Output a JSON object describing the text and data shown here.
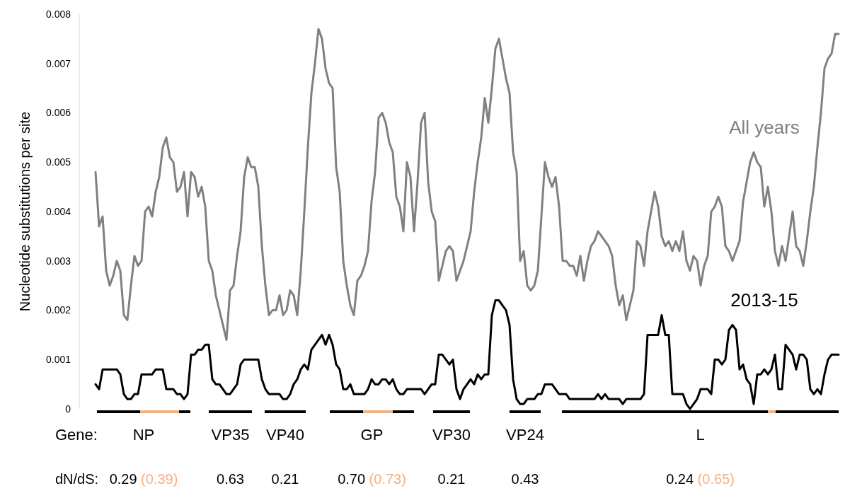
{
  "chart_data": {
    "type": "line",
    "ylabel": "Nucleotide substitutions per site",
    "ylim": [
      0,
      0.008
    ],
    "yticks": [
      0,
      0.001,
      0.002,
      0.003,
      0.004,
      0.005,
      0.006,
      0.007,
      0.008
    ],
    "grid": false,
    "categories": [
      null,
      null,
      null,
      null,
      null,
      null,
      null,
      null,
      null,
      null,
      null,
      null,
      null,
      null,
      null,
      null,
      null,
      null,
      null,
      null,
      null,
      null,
      null,
      null,
      null,
      null,
      null,
      null,
      null,
      null,
      null,
      null,
      null,
      null,
      null,
      null,
      null,
      null,
      null,
      null,
      null,
      null,
      null,
      null,
      null,
      null,
      null,
      null,
      null,
      null,
      null,
      null,
      null,
      null,
      null,
      null,
      null,
      null,
      null,
      null,
      null,
      null,
      null,
      null,
      null,
      null,
      null,
      null,
      null,
      null,
      null,
      null,
      null,
      null,
      null,
      null,
      null,
      null,
      null,
      null,
      null,
      null,
      null,
      null,
      null,
      null,
      null,
      null,
      null,
      null,
      null,
      null,
      null,
      null,
      null,
      null,
      null,
      null,
      null,
      null,
      null,
      null,
      null,
      null,
      null,
      null,
      null,
      null,
      null,
      null,
      null,
      null,
      null,
      null,
      null,
      null,
      null,
      null,
      null,
      null,
      null,
      null,
      null,
      null,
      null,
      null,
      null,
      null,
      null,
      null,
      null,
      null,
      null,
      null,
      null,
      null,
      null,
      null,
      null,
      null,
      null,
      null,
      null,
      null,
      null,
      null,
      null,
      null,
      null,
      null,
      null,
      null,
      null,
      null,
      null,
      null,
      null,
      null,
      null,
      null,
      null,
      null,
      null,
      null,
      null,
      null,
      null,
      null,
      null,
      null,
      null,
      null,
      null,
      null,
      null,
      null,
      null,
      null,
      null,
      null,
      null,
      null,
      null,
      null,
      null,
      null,
      null,
      null,
      null,
      null,
      null,
      null,
      null,
      null,
      null,
      null,
      null,
      null,
      null,
      null,
      null,
      null,
      null,
      null,
      null,
      null,
      null,
      null,
      null,
      null,
      null
    ],
    "series": [
      {
        "name": "All years",
        "color": "#808080",
        "values": [
          0.0048,
          0.0037,
          0.0039,
          0.0028,
          0.0025,
          0.0027,
          0.003,
          0.0028,
          0.0019,
          0.0018,
          0.0025,
          0.0031,
          0.0029,
          0.003,
          0.004,
          0.0041,
          0.0039,
          0.0044,
          0.0047,
          0.0053,
          0.0055,
          0.0051,
          0.005,
          0.0044,
          0.0045,
          0.0048,
          0.0039,
          0.0048,
          0.0047,
          0.0043,
          0.0045,
          0.0041,
          0.003,
          0.0028,
          0.0023,
          0.002,
          0.0017,
          0.0014,
          0.0024,
          0.0025,
          0.0031,
          0.0036,
          0.0047,
          0.0051,
          0.0049,
          0.0049,
          0.0045,
          0.0033,
          0.0025,
          0.0019,
          0.002,
          0.002,
          0.0023,
          0.0019,
          0.002,
          0.0024,
          0.0023,
          0.0019,
          0.0028,
          0.004,
          0.0053,
          0.0064,
          0.007,
          0.0077,
          0.0075,
          0.0069,
          0.0066,
          0.0065,
          0.0049,
          0.0044,
          0.003,
          0.0025,
          0.0021,
          0.0019,
          0.0026,
          0.0027,
          0.0029,
          0.0032,
          0.0042,
          0.0048,
          0.0059,
          0.006,
          0.0058,
          0.0054,
          0.0052,
          0.0043,
          0.0041,
          0.0036,
          0.005,
          0.0047,
          0.0036,
          0.0046,
          0.0058,
          0.006,
          0.0046,
          0.004,
          0.0038,
          0.0026,
          0.0029,
          0.0032,
          0.0033,
          0.0032,
          0.0026,
          0.0028,
          0.003,
          0.0033,
          0.0036,
          0.0044,
          0.005,
          0.0055,
          0.0063,
          0.0058,
          0.0065,
          0.0073,
          0.0075,
          0.0071,
          0.0067,
          0.0064,
          0.0052,
          0.0048,
          0.003,
          0.0032,
          0.0025,
          0.0024,
          0.0025,
          0.0028,
          0.0039,
          0.005,
          0.0047,
          0.0045,
          0.0047,
          0.0041,
          0.003,
          0.003,
          0.0029,
          0.0029,
          0.0027,
          0.0031,
          0.0026,
          0.003,
          0.0033,
          0.0034,
          0.0036,
          0.0035,
          0.0034,
          0.0033,
          0.0031,
          0.0025,
          0.0021,
          0.0023,
          0.0018,
          0.0021,
          0.0024,
          0.0034,
          0.0033,
          0.0029,
          0.0036,
          0.004,
          0.0044,
          0.0041,
          0.0035,
          0.0033,
          0.0034,
          0.0032,
          0.0034,
          0.0032,
          0.0036,
          0.003,
          0.0028,
          0.0031,
          0.003,
          0.0025,
          0.0029,
          0.0031,
          0.004,
          0.0041,
          0.0043,
          0.0041,
          0.0033,
          0.0032,
          0.003,
          0.0032,
          0.0034,
          0.0042,
          0.0046,
          0.005,
          0.0052,
          0.005,
          0.0049,
          0.0041,
          0.0045,
          0.004,
          0.0032,
          0.0029,
          0.0033,
          0.003,
          0.0035,
          0.004,
          0.0033,
          0.0032,
          0.0029,
          0.0034,
          0.004,
          0.0045,
          0.0053,
          0.006,
          0.0069,
          0.0071,
          0.0072,
          0.0076,
          0.0076
        ]
      },
      {
        "name": "2013-15",
        "color": "#000000",
        "values": [
          0.0005,
          0.0004,
          0.0008,
          0.0008,
          0.0008,
          0.0008,
          0.0008,
          0.0007,
          0.0003,
          0.0002,
          0.0002,
          0.0003,
          0.0003,
          0.0007,
          0.0007,
          0.0007,
          0.0007,
          0.0008,
          0.0008,
          0.0008,
          0.0004,
          0.0004,
          0.0004,
          0.0003,
          0.0003,
          0.0002,
          0.0003,
          0.0011,
          0.0011,
          0.0012,
          0.0012,
          0.0013,
          0.0013,
          0.0006,
          0.0005,
          0.0005,
          0.0004,
          0.0003,
          0.0003,
          0.0004,
          0.0005,
          0.0009,
          0.001,
          0.001,
          0.001,
          0.001,
          0.001,
          0.0006,
          0.0004,
          0.0003,
          0.0003,
          0.0003,
          0.0003,
          0.0002,
          0.0002,
          0.0003,
          0.0005,
          0.0006,
          0.0008,
          0.0009,
          0.0008,
          0.0012,
          0.0013,
          0.0014,
          0.0015,
          0.0013,
          0.0015,
          0.0013,
          0.0009,
          0.0008,
          0.0004,
          0.0004,
          0.0005,
          0.0003,
          0.0003,
          0.0003,
          0.0003,
          0.0004,
          0.0006,
          0.0005,
          0.0005,
          0.0006,
          0.0006,
          0.0005,
          0.0006,
          0.0004,
          0.0003,
          0.0003,
          0.0004,
          0.0004,
          0.0004,
          0.0004,
          0.0004,
          0.0003,
          0.0004,
          0.0005,
          0.0005,
          0.0011,
          0.0011,
          0.001,
          0.0009,
          0.001,
          0.0004,
          0.0002,
          0.0004,
          0.0005,
          0.0006,
          0.0005,
          0.0007,
          0.0006,
          0.0007,
          0.0007,
          0.0019,
          0.0022,
          0.0022,
          0.0021,
          0.002,
          0.0017,
          0.0006,
          0.0002,
          0.0001,
          0.0001,
          0.0002,
          0.0002,
          0.0002,
          0.0003,
          0.0003,
          0.0005,
          0.0005,
          0.0005,
          0.0004,
          0.0003,
          0.0003,
          0.0003,
          0.0002,
          0.0002,
          0.0002,
          0.0002,
          0.0002,
          0.0002,
          0.0002,
          0.0002,
          0.0003,
          0.0002,
          0.0003,
          0.0002,
          0.0002,
          0.0002,
          0.0002,
          0.0001,
          0.0002,
          0.0002,
          0.0002,
          0.0002,
          0.0002,
          0.0003,
          0.0015,
          0.0015,
          0.0015,
          0.0015,
          0.0019,
          0.0015,
          0.0015,
          0.0003,
          0.0003,
          0.0003,
          0.0003,
          0.0001,
          0.0,
          0.0001,
          0.0002,
          0.0004,
          0.0004,
          0.0004,
          0.0003,
          0.001,
          0.001,
          0.0009,
          0.001,
          0.0016,
          0.0017,
          0.0016,
          0.0008,
          0.0009,
          0.0006,
          0.0005,
          0.0001,
          0.0007,
          0.0007,
          0.0008,
          0.0007,
          0.0008,
          0.0011,
          0.0004,
          0.0004,
          0.0013,
          0.0012,
          0.0011,
          0.0008,
          0.0011,
          0.0011,
          0.001,
          0.0004,
          0.0003,
          0.0004,
          0.0003,
          0.0007,
          0.001,
          0.0011,
          0.0011,
          0.0011
        ]
      }
    ],
    "annotations": [
      "Gene:",
      "NP",
      "VP35",
      "VP40",
      "GP",
      "VP30",
      "VP24",
      "L",
      "dN/dS:",
      "0.29 (0.39)",
      "0.63",
      "0.21",
      "0.70 (0.73)",
      "0.21",
      "0.43",
      "0.24 (0.65)"
    ]
  }
}
